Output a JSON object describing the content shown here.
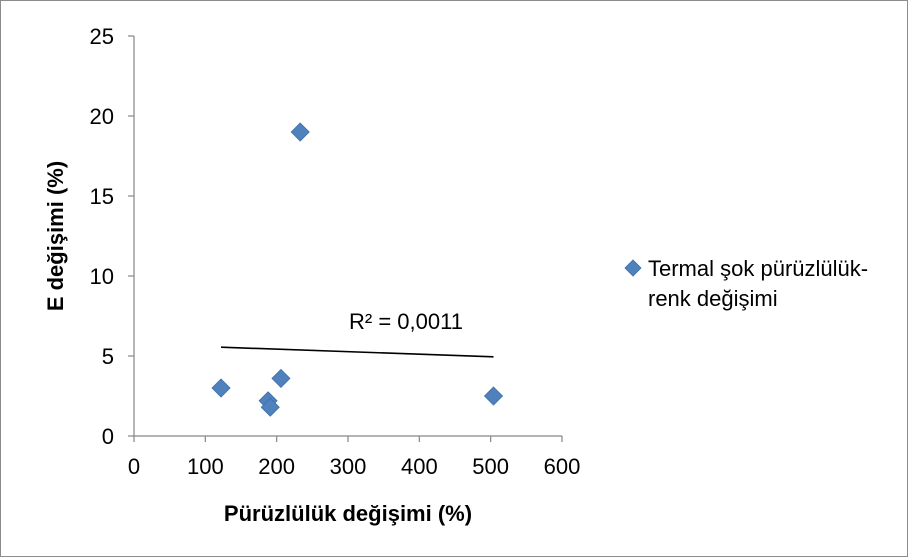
{
  "chart_data": {
    "type": "scatter",
    "xlabel": "Pürüzlülük değişimi (%)",
    "ylabel": "E değişimi (%)",
    "xlim": [
      0,
      600
    ],
    "ylim": [
      0,
      25
    ],
    "x_ticks": [
      0,
      100,
      200,
      300,
      400,
      500,
      600
    ],
    "y_ticks": [
      0,
      5,
      10,
      15,
      20,
      25
    ],
    "grid": false,
    "legend_position": "right",
    "series": [
      {
        "name": "Termal şok pürüzlülük-renk değişimi",
        "legend_lines": [
          "Termal şok pürüzlülük-",
          "renk değişimi"
        ],
        "color": "#4f81bd",
        "marker": "diamond",
        "x": [
          122,
          188,
          191,
          206,
          233,
          504
        ],
        "y": [
          3.0,
          2.2,
          1.8,
          3.6,
          19.0,
          2.5
        ]
      }
    ],
    "trendline": {
      "type": "linear",
      "color": "#000000",
      "x_start": 122,
      "y_start": 5.55,
      "x_end": 504,
      "y_end": 4.95,
      "annotation": "R² = 0,0011"
    }
  }
}
